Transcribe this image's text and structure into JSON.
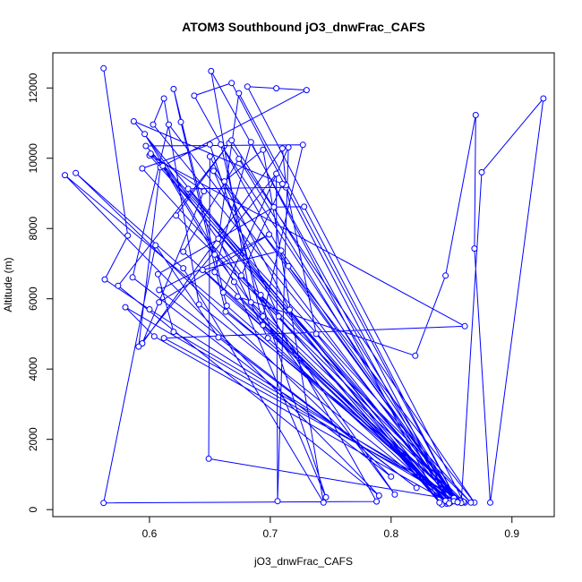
{
  "chart_data": {
    "type": "line",
    "title": "ATOM3 Southbound jO3_dnwFrac_CAFS",
    "xlabel": "jO3_dnwFrac_CAFS",
    "ylabel": "Altitude (m)",
    "xlim": [
      0.52,
      0.935
    ],
    "ylim": [
      -200,
      13000
    ],
    "x_ticks": [
      0.6,
      0.7,
      0.8,
      0.9
    ],
    "x_tick_labels": [
      "0.6",
      "0.7",
      "0.8",
      "0.9"
    ],
    "y_ticks": [
      0,
      2000,
      4000,
      6000,
      8000,
      10000,
      12000
    ],
    "y_tick_labels": [
      "0",
      "2000",
      "4000",
      "6000",
      "8000",
      "10000",
      "12000"
    ],
    "line_color": "#0000ff",
    "marker": "open-circle",
    "grid": false,
    "series": [
      {
        "points": [
          [
            0.562,
            12560
          ],
          [
            0.582,
            7800
          ],
          [
            0.563,
            6550
          ],
          [
            0.6,
            5700
          ],
          [
            0.853,
            250
          ],
          [
            0.58,
            5760
          ],
          [
            0.604,
            4930
          ],
          [
            0.848,
            200
          ],
          [
            0.651,
            12480
          ],
          [
            0.684,
            5900
          ],
          [
            0.858,
            260
          ],
          [
            0.612,
            4880
          ],
          [
            0.861,
            5220
          ],
          [
            0.6,
            10080
          ],
          [
            0.855,
            210
          ],
          [
            0.728,
            8620
          ],
          [
            0.703,
            8610
          ],
          [
            0.607,
            6700
          ],
          [
            0.62,
            5060
          ],
          [
            0.861,
            200
          ],
          [
            0.622,
            8370
          ],
          [
            0.666,
            10430
          ],
          [
            0.869,
            200
          ],
          [
            0.653,
            9640
          ],
          [
            0.707,
            5500
          ],
          [
            0.842,
            150
          ],
          [
            0.632,
            9130
          ],
          [
            0.713,
            9170
          ],
          [
            0.849,
            200
          ],
          [
            0.668,
            12140
          ],
          [
            0.637,
            11780
          ],
          [
            0.715,
            6930
          ],
          [
            0.852,
            330
          ],
          [
            0.628,
            7340
          ],
          [
            0.674,
            9980
          ],
          [
            0.848,
            180
          ],
          [
            0.644,
            6820
          ],
          [
            0.709,
            7370
          ],
          [
            0.855,
            210
          ],
          [
            0.674,
            11850
          ],
          [
            0.657,
            7710
          ],
          [
            0.698,
            4880
          ],
          [
            0.846,
            170
          ],
          [
            0.601,
            10130
          ],
          [
            0.645,
            9060
          ],
          [
            0.594,
            4730
          ],
          [
            0.71,
            10280
          ],
          [
            0.713,
            9230
          ],
          [
            0.738,
            5000
          ],
          [
            0.85,
            230
          ],
          [
            0.664,
            5800
          ],
          [
            0.62,
            11970
          ],
          [
            0.626,
            11030
          ],
          [
            0.663,
            5630
          ],
          [
            0.86,
            220
          ],
          [
            0.681,
            12040
          ],
          [
            0.705,
            11990
          ],
          [
            0.73,
            11940
          ],
          [
            0.609,
            9740
          ],
          [
            0.591,
            4640
          ],
          [
            0.705,
            9560
          ],
          [
            0.706,
            240
          ],
          [
            0.715,
            10310
          ],
          [
            0.661,
            6180
          ],
          [
            0.857,
            250
          ],
          [
            0.649,
            1450
          ],
          [
            0.65,
            10050
          ],
          [
            0.716,
            5690
          ],
          [
            0.846,
            220
          ],
          [
            0.587,
            11050
          ],
          [
            0.71,
            9270
          ],
          [
            0.676,
            6660
          ],
          [
            0.866,
            200
          ],
          [
            0.597,
            10350
          ],
          [
            0.727,
            10380
          ],
          [
            0.694,
            5500
          ],
          [
            0.848,
            240
          ],
          [
            0.673,
            6060
          ],
          [
            0.82,
            4380
          ],
          [
            0.845,
            6660
          ],
          [
            0.87,
            11230
          ],
          [
            0.869,
            7430
          ],
          [
            0.882,
            200
          ],
          [
            0.926,
            11700
          ],
          [
            0.875,
            9600
          ],
          [
            0.858,
            190
          ],
          [
            0.603,
            10960
          ],
          [
            0.612,
            11700
          ],
          [
            0.641,
            5840
          ],
          [
            0.845,
            250
          ],
          [
            0.594,
            9710
          ],
          [
            0.65,
            10390
          ],
          [
            0.746,
            350
          ],
          [
            0.67,
            6480
          ],
          [
            0.596,
            10690
          ],
          [
            0.803,
            430
          ],
          [
            0.654,
            7260
          ],
          [
            0.611,
            9780
          ],
          [
            0.855,
            230
          ],
          [
            0.662,
            9340
          ],
          [
            0.694,
            10240
          ],
          [
            0.744,
            200
          ],
          [
            0.628,
            6870
          ],
          [
            0.539,
            9580
          ],
          [
            0.8,
            940
          ],
          [
            0.586,
            6610
          ],
          [
            0.616,
            10960
          ],
          [
            0.852,
            240
          ],
          [
            0.53,
            9520
          ],
          [
            0.79,
            400
          ],
          [
            0.574,
            6370
          ],
          [
            0.668,
            10510
          ],
          [
            0.855,
            210
          ],
          [
            0.659,
            10390
          ],
          [
            0.694,
            5250
          ],
          [
            0.848,
            180
          ],
          [
            0.654,
            6760
          ],
          [
            0.684,
            10460
          ],
          [
            0.84,
            200
          ],
          [
            0.692,
            6110
          ],
          [
            0.788,
            230
          ],
          [
            0.562,
            190
          ],
          [
            0.605,
            7520
          ],
          [
            0.657,
            4900
          ],
          [
            0.821,
            620
          ],
          [
            0.608,
            6250
          ],
          [
            0.699,
            7830
          ],
          [
            0.608,
            5900
          ]
        ]
      }
    ]
  }
}
